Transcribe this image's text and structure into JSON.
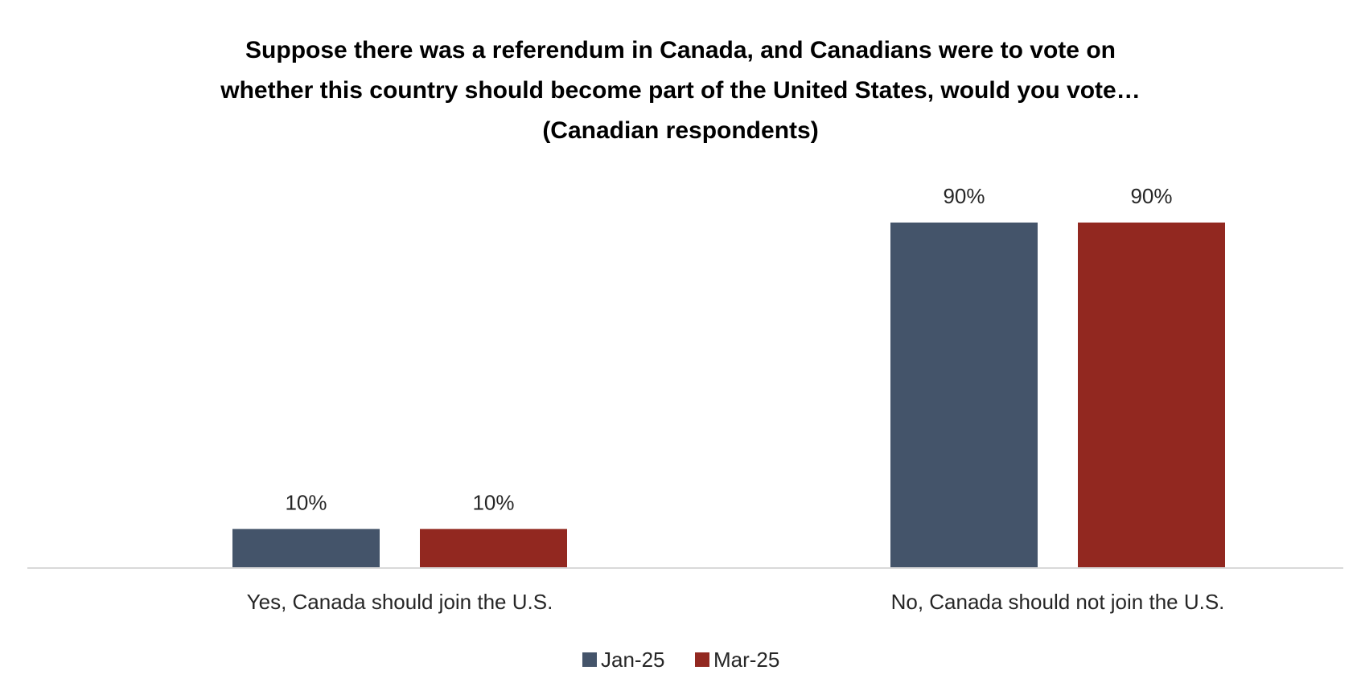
{
  "colors": {
    "jan": "#44546A",
    "mar": "#922820",
    "axis": "#D9D9D9",
    "text": "#262626"
  },
  "chart_data": {
    "type": "bar",
    "title_lines": [
      "Suppose there was a referendum in Canada, and Canadians were to vote on",
      "whether this country should become part of the United States, would you vote…",
      "(Canadian respondents)"
    ],
    "categories": [
      "Yes, Canada should join the U.S.",
      "No, Canada should not join the U.S."
    ],
    "series": [
      {
        "name": "Jan-25",
        "values": [
          10,
          90
        ],
        "labels": [
          "10%",
          "90%"
        ],
        "color": "#44546A"
      },
      {
        "name": "Mar-25",
        "values": [
          10,
          90
        ],
        "labels": [
          "10%",
          "90%"
        ],
        "color": "#922820"
      }
    ],
    "ylim": [
      0,
      90
    ],
    "grid": false,
    "legend": "bottom-center",
    "xlabel": "",
    "ylabel": ""
  }
}
